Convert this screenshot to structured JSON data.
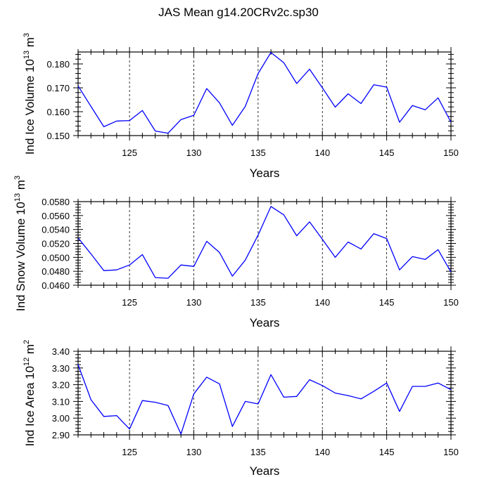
{
  "title": "JAS Mean g14.20CRv2c.sp30",
  "chart_data": [
    {
      "type": "line",
      "name": "ice-volume",
      "ylabel_text": "Ind Ice Volume 10",
      "ylabel_exp": "13",
      "ylabel_unit": " m",
      "ylabel_unit_exp": "3",
      "xlabel": "Years",
      "xlim": [
        121,
        150
      ],
      "ylim": [
        0.15,
        0.185
      ],
      "xticks": [
        125,
        130,
        135,
        140,
        145,
        150
      ],
      "xtick_labels": [
        "125",
        "130",
        "135",
        "140",
        "145",
        "150"
      ],
      "yticks": [
        0.15,
        0.16,
        0.17,
        0.18
      ],
      "ytick_labels": [
        "0.150",
        "0.160",
        "0.170",
        "0.180"
      ],
      "color": "#0000ff",
      "x": [
        121,
        122,
        123,
        124,
        125,
        126,
        127,
        128,
        129,
        130,
        131,
        132,
        133,
        134,
        135,
        136,
        137,
        138,
        139,
        140,
        141,
        142,
        143,
        144,
        145,
        146,
        147,
        148,
        149,
        150
      ],
      "y": [
        0.1708,
        0.1622,
        0.1537,
        0.1561,
        0.1563,
        0.1605,
        0.1519,
        0.151,
        0.1567,
        0.1585,
        0.1697,
        0.1637,
        0.1543,
        0.1622,
        0.176,
        0.1848,
        0.1805,
        0.1718,
        0.1778,
        0.17,
        0.1619,
        0.1675,
        0.1634,
        0.1713,
        0.1703,
        0.1556,
        0.1626,
        0.1608,
        0.1658,
        0.1556
      ]
    },
    {
      "type": "line",
      "name": "snow-volume",
      "ylabel_text": "Ind Snow Volume 10",
      "ylabel_exp": "13",
      "ylabel_unit": " m",
      "ylabel_unit_exp": "3",
      "xlabel": "Years",
      "xlim": [
        121,
        150
      ],
      "ylim": [
        0.046,
        0.058
      ],
      "xticks": [
        125,
        130,
        135,
        140,
        145,
        150
      ],
      "xtick_labels": [
        "125",
        "130",
        "135",
        "140",
        "145",
        "150"
      ],
      "yticks": [
        0.046,
        0.048,
        0.05,
        0.052,
        0.054,
        0.056,
        0.058
      ],
      "ytick_labels": [
        "0.0460",
        "0.0480",
        "0.0500",
        "0.0520",
        "0.0540",
        "0.0560",
        "0.0580"
      ],
      "color": "#0000ff",
      "x": [
        121,
        122,
        123,
        124,
        125,
        126,
        127,
        128,
        129,
        130,
        131,
        132,
        133,
        134,
        135,
        136,
        137,
        138,
        139,
        140,
        141,
        142,
        143,
        144,
        145,
        146,
        147,
        148,
        149,
        150
      ],
      "y": [
        0.0528,
        0.0505,
        0.0481,
        0.0482,
        0.0489,
        0.0504,
        0.0471,
        0.047,
        0.0489,
        0.0487,
        0.0523,
        0.0507,
        0.0473,
        0.0496,
        0.0532,
        0.0573,
        0.0561,
        0.0531,
        0.0551,
        0.0526,
        0.05,
        0.0522,
        0.0512,
        0.0534,
        0.0527,
        0.0482,
        0.0501,
        0.0497,
        0.0511,
        0.0479
      ]
    },
    {
      "type": "line",
      "name": "ice-area",
      "ylabel_text": "Ind Ice Area 10",
      "ylabel_exp": "12",
      "ylabel_unit": " m",
      "ylabel_unit_exp": "2",
      "xlabel": "Years",
      "xlim": [
        121,
        150
      ],
      "ylim": [
        2.9,
        3.4
      ],
      "xticks": [
        125,
        130,
        135,
        140,
        145,
        150
      ],
      "xtick_labels": [
        "125",
        "130",
        "135",
        "140",
        "145",
        "150"
      ],
      "yticks": [
        2.9,
        3.0,
        3.1,
        3.2,
        3.3,
        3.4
      ],
      "ytick_labels": [
        "2.90",
        "3.00",
        "3.10",
        "3.20",
        "3.30",
        "3.40"
      ],
      "color": "#0000ff",
      "x": [
        121,
        122,
        123,
        124,
        125,
        126,
        127,
        128,
        129,
        130,
        131,
        132,
        133,
        134,
        135,
        136,
        137,
        138,
        139,
        140,
        141,
        142,
        143,
        144,
        145,
        146,
        147,
        148,
        149,
        150
      ],
      "y": [
        3.32,
        3.11,
        3.01,
        3.015,
        2.935,
        3.105,
        3.095,
        3.075,
        2.905,
        3.145,
        3.245,
        3.205,
        2.95,
        3.1,
        3.085,
        3.26,
        3.125,
        3.13,
        3.23,
        3.195,
        3.15,
        3.135,
        3.115,
        3.16,
        3.21,
        3.04,
        3.19,
        3.19,
        3.21,
        3.17
      ]
    }
  ]
}
